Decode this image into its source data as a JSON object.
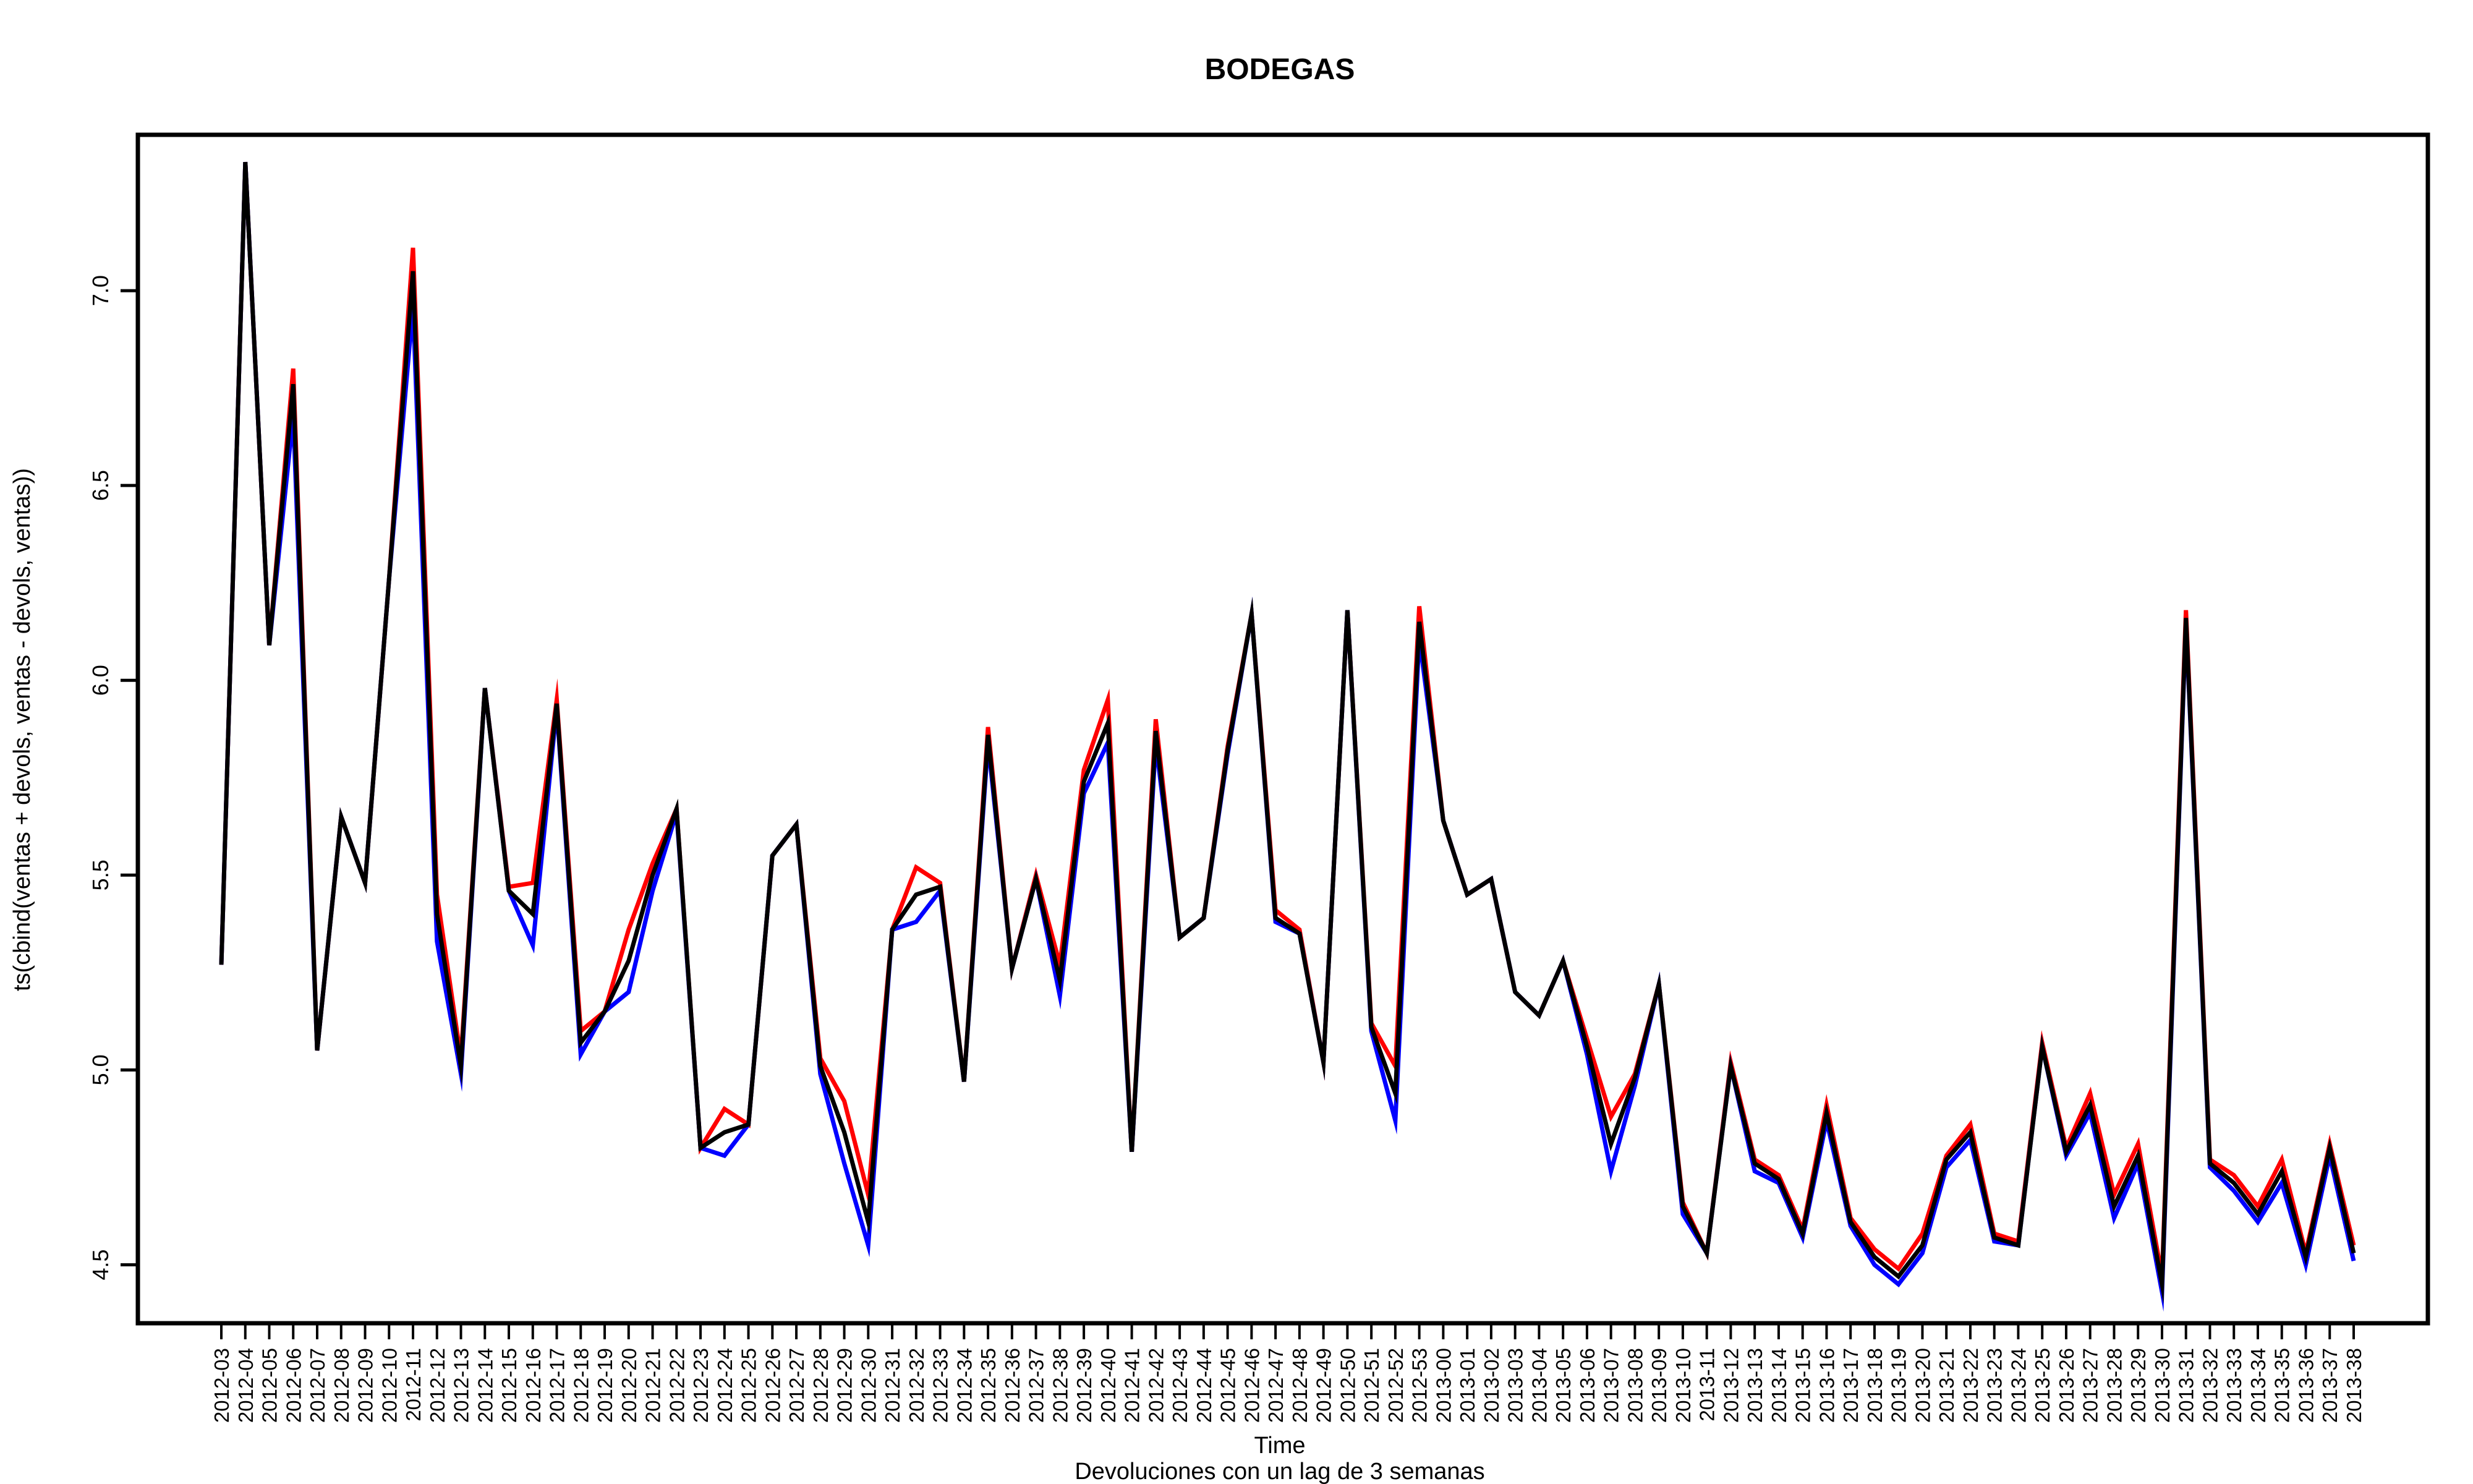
{
  "chart_data": {
    "type": "line",
    "title": "BODEGAS",
    "xlabel": "Time",
    "subtitle": "Devoluciones con un lag de 3 semanas",
    "ylabel": "ts(cbind(ventas + devols, ventas - devols, ventas))",
    "ylim": [
      4.35,
      7.4
    ],
    "yticks": [
      4.5,
      5.0,
      5.5,
      6.0,
      6.5,
      7.0
    ],
    "ytick_labels": [
      "4.5",
      "5.0",
      "5.5",
      "6.0",
      "6.5",
      "7.0"
    ],
    "grid": false,
    "legend": "none",
    "categories": [
      "2012-03",
      "2012-04",
      "2012-05",
      "2012-06",
      "2012-07",
      "2012-08",
      "2012-09",
      "2012-10",
      "2012-11",
      "2012-12",
      "2012-13",
      "2012-14",
      "2012-15",
      "2012-16",
      "2012-17",
      "2012-18",
      "2012-19",
      "2012-20",
      "2012-21",
      "2012-22",
      "2012-23",
      "2012-24",
      "2012-25",
      "2012-26",
      "2012-27",
      "2012-28",
      "2012-29",
      "2012-30",
      "2012-31",
      "2012-32",
      "2012-33",
      "2012-34",
      "2012-35",
      "2012-36",
      "2012-37",
      "2012-38",
      "2012-39",
      "2012-40",
      "2012-41",
      "2012-42",
      "2012-43",
      "2012-44",
      "2012-45",
      "2012-46",
      "2012-47",
      "2012-48",
      "2012-49",
      "2012-50",
      "2012-51",
      "2012-52",
      "2012-53",
      "2013-00",
      "2013-01",
      "2013-02",
      "2013-03",
      "2013-04",
      "2013-05",
      "2013-06",
      "2013-07",
      "2013-08",
      "2013-09",
      "2013-10",
      "2013-11",
      "2013-12",
      "2013-13",
      "2013-14",
      "2013-15",
      "2013-16",
      "2013-17",
      "2013-18",
      "2013-19",
      "2013-20",
      "2013-21",
      "2013-22",
      "2013-23",
      "2013-24",
      "2013-25",
      "2013-26",
      "2013-27",
      "2013-28",
      "2013-29",
      "2013-30",
      "2013-31",
      "2013-32",
      "2013-33",
      "2013-34",
      "2013-35",
      "2013-36",
      "2013-37",
      "2013-38"
    ],
    "series": [
      {
        "color": "#ff0000",
        "values": [
          5.27,
          7.33,
          6.09,
          6.8,
          5.05,
          5.65,
          5.48,
          6.26,
          7.11,
          5.45,
          5.03,
          5.98,
          5.47,
          5.48,
          5.95,
          5.1,
          5.15,
          5.36,
          5.53,
          5.67,
          4.8,
          4.9,
          4.86,
          5.55,
          5.63,
          5.03,
          4.92,
          4.68,
          5.36,
          5.52,
          5.48,
          4.97,
          5.88,
          5.26,
          5.5,
          5.27,
          5.77,
          5.95,
          4.79,
          5.9,
          5.34,
          5.39,
          5.83,
          6.17,
          5.41,
          5.36,
          5.02,
          6.18,
          5.12,
          5.01,
          6.19,
          5.64,
          5.45,
          5.49,
          5.2,
          5.14,
          5.28,
          5.08,
          4.88,
          4.99,
          5.22,
          4.66,
          4.53,
          5.02,
          4.77,
          4.73,
          4.59,
          4.91,
          4.62,
          4.54,
          4.49,
          4.58,
          4.78,
          4.86,
          4.58,
          4.56,
          5.07,
          4.8,
          4.94,
          4.68,
          4.81,
          4.47,
          6.18,
          4.77,
          4.73,
          4.65,
          4.77,
          4.53,
          4.81,
          4.55
        ]
      },
      {
        "color": "#0000ff",
        "values": [
          5.27,
          7.33,
          6.09,
          6.68,
          5.05,
          5.65,
          5.48,
          6.26,
          6.96,
          5.33,
          4.99,
          5.98,
          5.46,
          5.32,
          5.93,
          5.04,
          5.15,
          5.2,
          5.46,
          5.66,
          4.8,
          4.78,
          4.86,
          5.55,
          5.63,
          4.99,
          4.76,
          4.55,
          5.36,
          5.38,
          5.46,
          4.97,
          5.84,
          5.26,
          5.49,
          5.19,
          5.71,
          5.84,
          4.79,
          5.84,
          5.34,
          5.39,
          5.81,
          6.17,
          5.38,
          5.35,
          5.02,
          6.18,
          5.1,
          4.87,
          6.11,
          5.64,
          5.45,
          5.49,
          5.2,
          5.14,
          5.28,
          5.04,
          4.74,
          4.96,
          5.22,
          4.63,
          4.53,
          5.01,
          4.74,
          4.71,
          4.57,
          4.87,
          4.6,
          4.5,
          4.45,
          4.53,
          4.75,
          4.82,
          4.56,
          4.55,
          5.06,
          4.78,
          4.89,
          4.62,
          4.76,
          4.43,
          6.15,
          4.75,
          4.69,
          4.61,
          4.71,
          4.5,
          4.78,
          4.51
        ]
      },
      {
        "color": "#000000",
        "values": [
          5.27,
          7.33,
          6.09,
          6.76,
          5.05,
          5.65,
          5.48,
          6.26,
          7.05,
          5.4,
          5.01,
          5.98,
          5.46,
          5.4,
          5.94,
          5.07,
          5.15,
          5.28,
          5.5,
          5.67,
          4.8,
          4.84,
          4.86,
          5.55,
          5.63,
          5.01,
          4.84,
          4.61,
          5.36,
          5.45,
          5.47,
          4.97,
          5.86,
          5.26,
          5.49,
          5.23,
          5.74,
          5.89,
          4.79,
          5.87,
          5.34,
          5.39,
          5.82,
          6.17,
          5.39,
          5.35,
          5.02,
          6.18,
          5.11,
          4.94,
          6.15,
          5.64,
          5.45,
          5.49,
          5.2,
          5.14,
          5.28,
          5.06,
          4.81,
          4.98,
          5.22,
          4.65,
          4.53,
          5.01,
          4.76,
          4.72,
          4.58,
          4.89,
          4.61,
          4.52,
          4.47,
          4.55,
          4.77,
          4.84,
          4.57,
          4.55,
          5.06,
          4.79,
          4.91,
          4.65,
          4.78,
          4.45,
          6.16,
          4.76,
          4.71,
          4.63,
          4.74,
          4.52,
          4.8,
          4.53
        ]
      }
    ]
  }
}
